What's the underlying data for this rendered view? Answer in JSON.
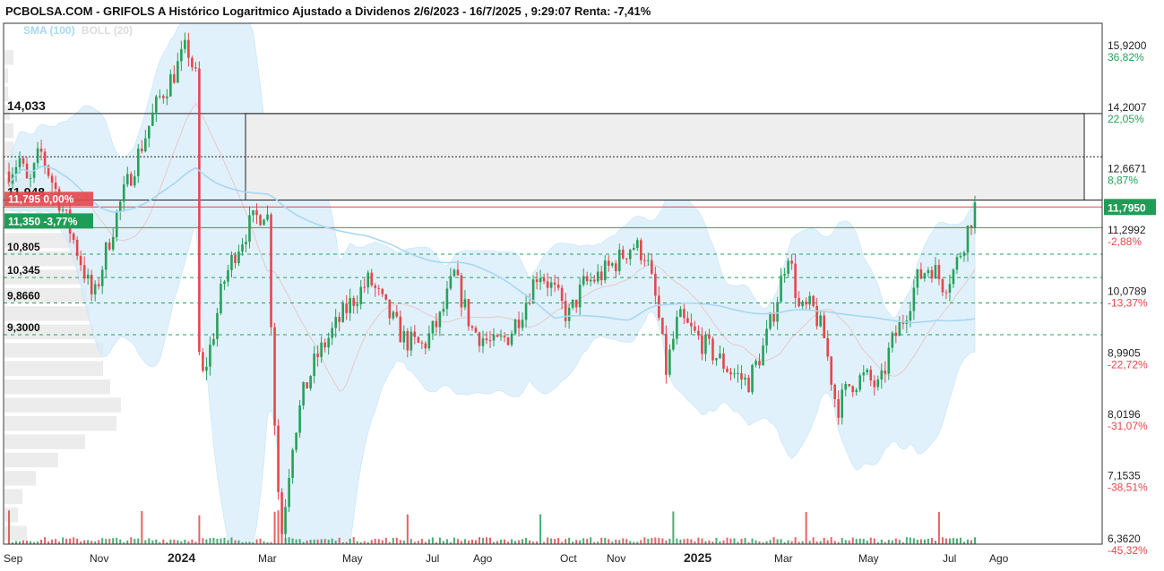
{
  "header": {
    "title": "PCBOLSA.COM - GRIFOLS A Histórico Logaritmico Ajustado a Dividenos 2/6/2023 - 16/7/2025 , 9:29:07 Renta: -7,41%",
    "legend_sma": "SMA (100)",
    "legend_boll": "BOLL (20)"
  },
  "colors": {
    "up": "#27a05a",
    "down": "#e4474b",
    "band_fill": "#d6ecfb",
    "sma": "#a7d7f1",
    "boll_mid": "#e9c8c8",
    "zone_fill": "#eeeeee",
    "price_tag": "#1f9d57",
    "red_tag": "#e4474b"
  },
  "chart_data": {
    "type": "candlestick",
    "scale": "log",
    "ylim": [
      6.3,
      16.6
    ],
    "x_ticks": [
      "Sep",
      "Nov",
      "2024",
      "Mar",
      "May",
      "Jul",
      "Ago",
      "Oct",
      "Nov",
      "2025",
      "Mar",
      "May",
      "Jul",
      "Ago"
    ],
    "y_ticks": [
      {
        "price": "15,9200",
        "pct": "36,82%",
        "value": 15.92,
        "sign": "pos"
      },
      {
        "price": "14,2007",
        "pct": "22,05%",
        "value": 14.2007,
        "sign": "pos"
      },
      {
        "price": "12,6671",
        "pct": "8,87%",
        "value": 12.6671,
        "sign": "pos"
      },
      {
        "price": "11,2992",
        "pct": "-2,88%",
        "value": 11.2992,
        "sign": "neg"
      },
      {
        "price": "10,0789",
        "pct": "-13,37%",
        "value": 10.0789,
        "sign": "neg"
      },
      {
        "price": "8,9905",
        "pct": "-22,72%",
        "value": 8.9905,
        "sign": "neg"
      },
      {
        "price": "8,0196",
        "pct": "-31,07%",
        "value": 8.0196,
        "sign": "neg"
      },
      {
        "price": "7,1535",
        "pct": "-38,51%",
        "value": 7.1535,
        "sign": "neg"
      },
      {
        "price": "6,3620",
        "pct": "-45,32%",
        "value": 6.362,
        "sign": "neg"
      }
    ],
    "current_price": {
      "label": "11,7950",
      "value": 11.795
    },
    "left_tags": {
      "red": "11,795  0,00%",
      "green": "11,350  -3,77%"
    },
    "levels": [
      {
        "label": "14,033",
        "value": 14.033,
        "kind": "box-top"
      },
      {
        "label": "11,948",
        "value": 11.948,
        "kind": "box-bottom"
      },
      {
        "label": "10,805",
        "value": 10.805,
        "kind": "dashed"
      },
      {
        "label": "10,345",
        "value": 10.345,
        "kind": "dashed"
      },
      {
        "label": "9,8660",
        "value": 9.866,
        "kind": "dashed"
      },
      {
        "label": "9,3000",
        "value": 9.3,
        "kind": "dashed"
      }
    ],
    "green_line": 11.35,
    "box_mid": 12.95,
    "price_path": [
      [
        12.6,
        0
      ],
      [
        12.9,
        12
      ],
      [
        12.2,
        22
      ],
      [
        13.1,
        35
      ],
      [
        12.3,
        50
      ],
      [
        11.5,
        65
      ],
      [
        10.6,
        82
      ],
      [
        9.9,
        95
      ],
      [
        10.8,
        108
      ],
      [
        11.7,
        122
      ],
      [
        12.6,
        138
      ],
      [
        13.4,
        152
      ],
      [
        14.4,
        168
      ],
      [
        15.1,
        185
      ],
      [
        15.9,
        200
      ],
      [
        14.8,
        212
      ],
      [
        8.4,
        214
      ],
      [
        9.2,
        228
      ],
      [
        10.2,
        240
      ],
      [
        10.9,
        255
      ],
      [
        11.4,
        270
      ],
      [
        11.8,
        290
      ],
      [
        7.4,
        300
      ],
      [
        6.4,
        306
      ],
      [
        7.6,
        318
      ],
      [
        8.3,
        330
      ],
      [
        8.9,
        345
      ],
      [
        9.4,
        365
      ],
      [
        9.9,
        385
      ],
      [
        10.3,
        405
      ],
      [
        9.7,
        425
      ],
      [
        9.2,
        445
      ],
      [
        9.1,
        465
      ],
      [
        9.6,
        485
      ],
      [
        10.4,
        500
      ],
      [
        9.4,
        520
      ],
      [
        9.1,
        545
      ],
      [
        9.3,
        562
      ],
      [
        9.8,
        578
      ],
      [
        10.5,
        595
      ],
      [
        10.1,
        612
      ],
      [
        9.6,
        628
      ],
      [
        10.2,
        645
      ],
      [
        10.4,
        665
      ],
      [
        10.7,
        685
      ],
      [
        11.0,
        700
      ],
      [
        10.8,
        715
      ],
      [
        9.8,
        728
      ],
      [
        8.7,
        738
      ],
      [
        9.6,
        752
      ],
      [
        9.3,
        770
      ],
      [
        9.0,
        790
      ],
      [
        8.7,
        810
      ],
      [
        8.5,
        830
      ],
      [
        9.1,
        848
      ],
      [
        9.9,
        862
      ],
      [
        10.9,
        875
      ],
      [
        9.7,
        888
      ],
      [
        9.8,
        902
      ],
      [
        9.3,
        915
      ],
      [
        8.1,
        930
      ],
      [
        8.5,
        945
      ],
      [
        8.6,
        962
      ],
      [
        8.4,
        978
      ],
      [
        9.1,
        990
      ],
      [
        9.6,
        1005
      ],
      [
        10.3,
        1020
      ],
      [
        10.6,
        1035
      ],
      [
        10.2,
        1050
      ],
      [
        10.5,
        1062
      ],
      [
        11.2,
        1075
      ],
      [
        11.8,
        1085
      ]
    ],
    "volume_profile_widths": [
      10,
      4,
      4,
      6,
      10,
      10,
      10,
      30,
      55,
      70,
      80,
      85,
      90,
      92,
      95,
      100,
      110,
      110,
      118,
      130,
      125,
      90,
      60,
      35,
      20,
      15,
      25
    ]
  }
}
